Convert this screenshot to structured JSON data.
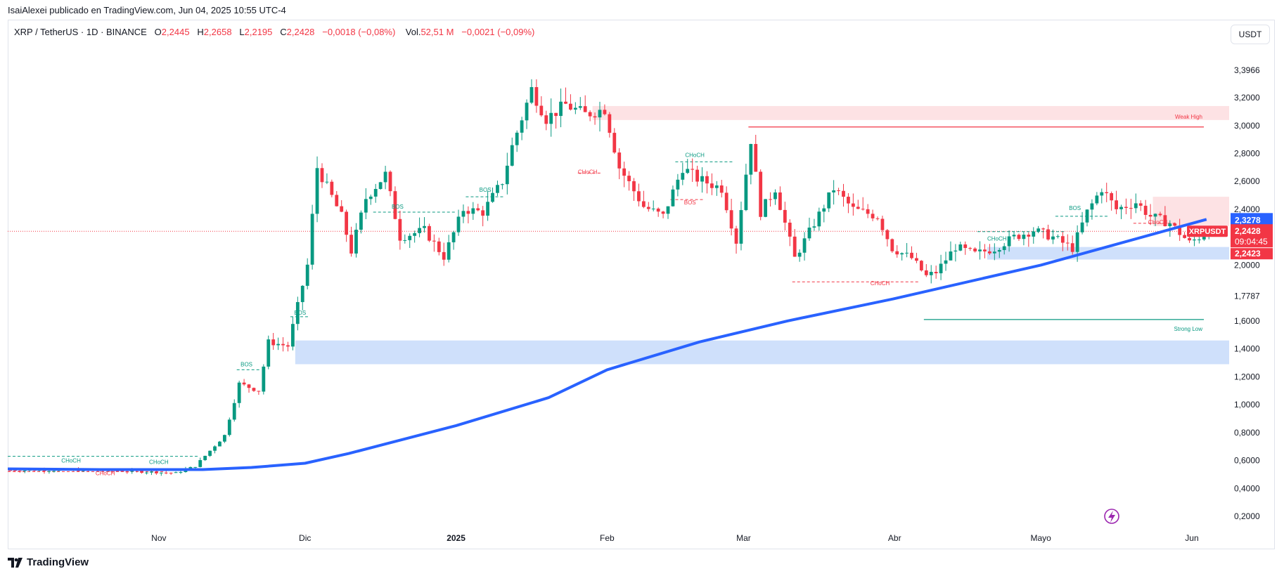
{
  "header": {
    "publisher_line": "IsaiAlexei publicado en TradingView.com, Jun 04, 2025 10:55 UTC-4"
  },
  "legend": {
    "symbol": "XRP / TetherUS · 1D · BINANCE",
    "open_label": "O",
    "open": "2,2445",
    "high_label": "H",
    "high": "2,2658",
    "low_label": "L",
    "low": "2,2195",
    "close_label": "C",
    "close": "2,2428",
    "change": "−0,0018 (−0,08%)",
    "vol_label": "Vol.",
    "vol": "52,51 M",
    "vol_change": "−0,0021 (−0,09%)"
  },
  "currency_button": "USDT",
  "footer": {
    "brand": "TradingView"
  },
  "colors": {
    "up": "#089981",
    "down": "#f23645",
    "ma": "#2962ff",
    "demand": "#cfe0fb",
    "supply": "#fde2e4"
  },
  "chart_data": {
    "type": "candlestick",
    "price_axis_ticks": [
      "3,3966",
      "3,2000",
      "3,0000",
      "2,8000",
      "2,6000",
      "2,4000",
      "2,0000",
      "1,7787",
      "1,6000",
      "1,4000",
      "1,2000",
      "1,0000",
      "0,8000",
      "0,6000",
      "0,4000",
      "0,2000"
    ],
    "time_axis_ticks": [
      "Nov",
      "Dic",
      "2025",
      "Feb",
      "Mar",
      "Abr",
      "Mayo",
      "Jun"
    ],
    "time_axis_bold": "2025",
    "symbol_tag": "XRPUSDT",
    "price_badges": [
      {
        "value": "2,3278",
        "role": "ma"
      },
      {
        "value": "2,2428",
        "role": "last"
      },
      {
        "value": "09:04:45",
        "role": "countdown"
      },
      {
        "value": "2,2423",
        "role": "bid"
      }
    ],
    "last_price": 2.2428,
    "ma_last": 2.3278,
    "zone_labels": {
      "weak_high": "Weak High",
      "strong_low": "Strong Low"
    },
    "structure_labels": [
      {
        "text": "CHoCH",
        "kind": "bull",
        "date": "2024-10-14",
        "price": 0.57
      },
      {
        "text": "CHoCH",
        "kind": "bull",
        "date": "2024-11-01",
        "price": 0.56
      },
      {
        "text": "CHoCH",
        "kind": "bear",
        "date": "2024-10-21",
        "price": 0.48
      },
      {
        "text": "BOS",
        "kind": "bull",
        "date": "2024-11-19",
        "price": 1.26
      },
      {
        "text": "BOS",
        "kind": "bull",
        "date": "2024-11-30",
        "price": 1.63
      },
      {
        "text": "BOS",
        "kind": "bull",
        "date": "2024-12-20",
        "price": 2.39
      },
      {
        "text": "BOS",
        "kind": "bull",
        "date": "2025-01-07",
        "price": 2.51
      },
      {
        "text": "CHoCH",
        "kind": "bear",
        "date": "2025-01-28",
        "price": 2.64
      },
      {
        "text": "CHoCH",
        "kind": "bull",
        "date": "2025-02-19",
        "price": 2.76
      },
      {
        "text": "BOS",
        "kind": "bear",
        "date": "2025-02-18",
        "price": 2.42
      },
      {
        "text": "CHoCH",
        "kind": "bear",
        "date": "2025-03-29",
        "price": 1.84
      },
      {
        "text": "CHoCH",
        "kind": "bull",
        "date": "2025-04-22",
        "price": 2.16
      },
      {
        "text": "BOS",
        "kind": "bull",
        "date": "2025-05-08",
        "price": 2.38
      },
      {
        "text": "CHoCH",
        "kind": "bear",
        "date": "2025-05-25",
        "price": 2.28
      }
    ]
  }
}
